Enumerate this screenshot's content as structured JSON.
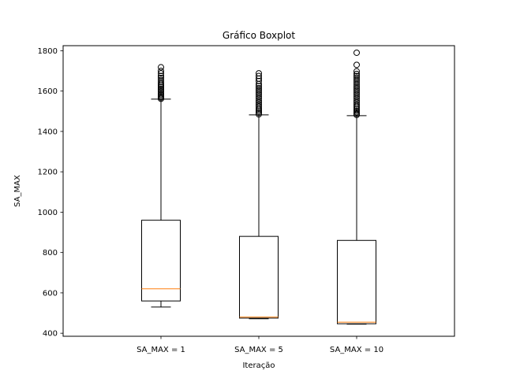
{
  "chart_data": {
    "type": "boxplot",
    "title": "Gráfico Boxplot",
    "xlabel": "Iteração",
    "ylabel": "SA_MAX",
    "categories": [
      "SA_MAX = 1",
      "SA_MAX = 5",
      "SA_MAX = 10"
    ],
    "ylim": [
      385,
      1825
    ],
    "yticks": [
      400,
      600,
      800,
      1000,
      1200,
      1400,
      1600,
      1800
    ],
    "grid": false,
    "boxes": [
      {
        "label": "SA_MAX = 1",
        "whisker_low": 530,
        "q1": 560,
        "median": 620,
        "q3": 960,
        "whisker_high": 1560,
        "outliers": [
          1562,
          1568,
          1575,
          1582,
          1590,
          1598,
          1605,
          1612,
          1620,
          1628,
          1636,
          1645,
          1655,
          1665,
          1675,
          1688,
          1700,
          1718
        ]
      },
      {
        "label": "SA_MAX = 5",
        "whisker_low": 472,
        "q1": 475,
        "median": 480,
        "q3": 880,
        "whisker_high": 1482,
        "outliers": [
          1485,
          1492,
          1500,
          1508,
          1516,
          1525,
          1535,
          1545,
          1555,
          1565,
          1575,
          1585,
          1595,
          1605,
          1615,
          1625,
          1635,
          1650,
          1662,
          1675,
          1688
        ]
      },
      {
        "label": "SA_MAX = 10",
        "whisker_low": 445,
        "q1": 447,
        "median": 455,
        "q3": 860,
        "whisker_high": 1478,
        "outliers": [
          1482,
          1488,
          1495,
          1502,
          1510,
          1518,
          1526,
          1535,
          1545,
          1555,
          1565,
          1575,
          1585,
          1595,
          1605,
          1615,
          1625,
          1635,
          1645,
          1655,
          1665,
          1675,
          1685,
          1698,
          1730,
          1790
        ]
      }
    ],
    "colors": {
      "box": "#000000",
      "median": "#ff7f0e",
      "whisker": "#000000",
      "outlier": "#000000"
    }
  }
}
